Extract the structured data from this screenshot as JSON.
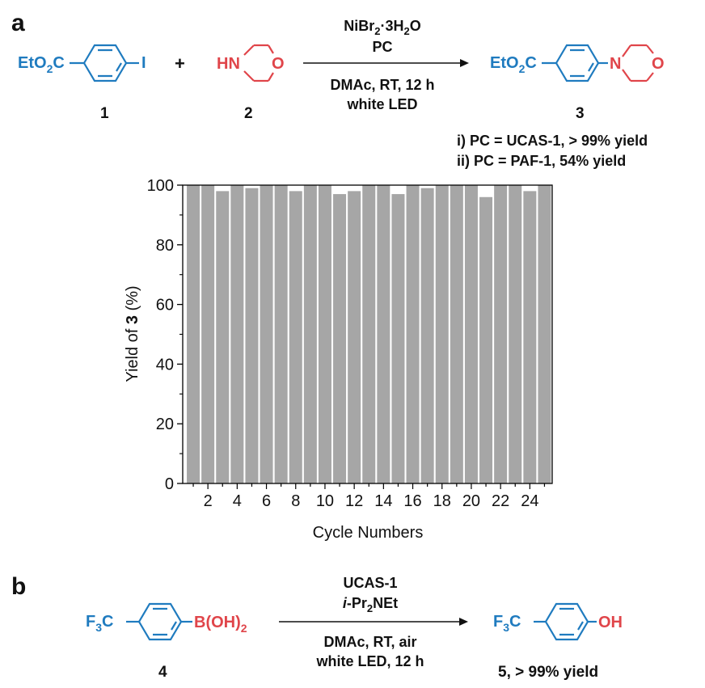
{
  "panel_a": {
    "label": "a",
    "reactant1": {
      "left": "EtO",
      "sub": "2",
      "right": "C",
      "halide": "I",
      "number": "1"
    },
    "plus": "+",
    "reactant2": {
      "amine": "HN",
      "oxygen": "O",
      "number": "2"
    },
    "conditions_above": {
      "cat_pre": "NiBr",
      "cat_sub": "2",
      "cat_post": "·3H",
      "cat_sub2": "2",
      "cat_end": "O",
      "pc": "PC"
    },
    "conditions_below": {
      "line1": "DMAc, RT, 12 h",
      "line2": "white LED"
    },
    "product": {
      "left": "EtO",
      "sub": "2",
      "right": "C",
      "nitrogen": "N",
      "oxygen": "O",
      "number": "3"
    },
    "notes": [
      "i) PC = UCAS-1, > 99% yield",
      "ii) PC = PAF-1, 54% yield"
    ]
  },
  "chart_data": {
    "type": "bar",
    "xlabel": "Cycle Numbers",
    "ylabel_pre": "Yield of ",
    "ylabel_bold": "3",
    "ylabel_post": " (%)",
    "ylim": [
      0,
      100
    ],
    "yticks": [
      0,
      20,
      40,
      60,
      80,
      100
    ],
    "xticks": [
      2,
      4,
      6,
      8,
      10,
      12,
      14,
      16,
      18,
      20,
      22,
      24
    ],
    "categories": [
      1,
      2,
      3,
      4,
      5,
      6,
      7,
      8,
      9,
      10,
      11,
      12,
      13,
      14,
      15,
      16,
      17,
      18,
      19,
      20,
      21,
      22,
      23,
      24,
      25
    ],
    "values": [
      100,
      100,
      98,
      100,
      99,
      100,
      100,
      98,
      100,
      100,
      97,
      98,
      100,
      100,
      97,
      100,
      99,
      100,
      100,
      100,
      96,
      100,
      100,
      98,
      100
    ],
    "bar_color": "#a6a6a6",
    "grid": false
  },
  "panel_b": {
    "label": "b",
    "reactant": {
      "left": "F",
      "sub": "3",
      "right": "C",
      "boron": "B(OH)",
      "boron_sub": "2",
      "number": "4"
    },
    "conditions_above": {
      "line1": "UCAS-1",
      "base_italic": "i",
      "base_rest": "-Pr",
      "base_sub": "2",
      "base_end": "NEt"
    },
    "conditions_below": {
      "line1": "DMAc, RT, air",
      "line2": "white LED, 12 h"
    },
    "product": {
      "left": "F",
      "sub": "3",
      "right": "C",
      "hydroxyl": "OH",
      "label": "5, > 99% yield"
    }
  }
}
